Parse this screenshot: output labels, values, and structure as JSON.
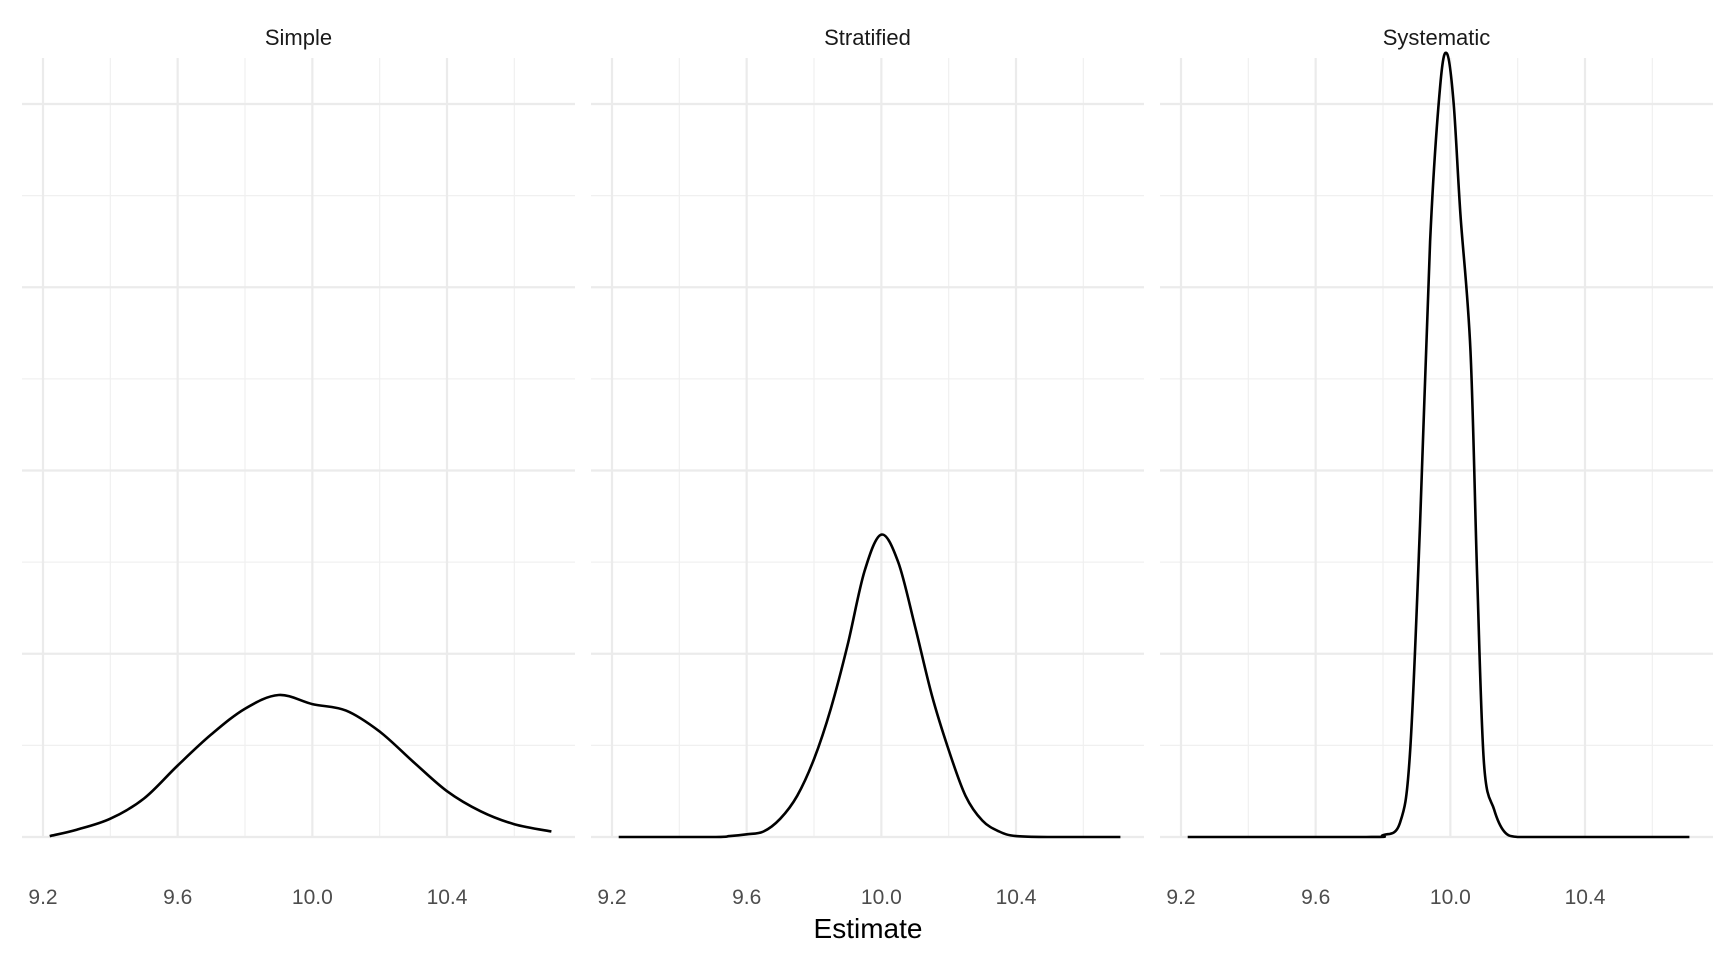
{
  "chart_data": {
    "type": "line",
    "xlabel": "Estimate",
    "ylabel": "",
    "xlim": [
      9.2,
      10.7
    ],
    "ylim": [
      0,
      8.6
    ],
    "x_ticks": [
      9.2,
      9.6,
      10.0,
      10.4
    ],
    "x_tick_labels": [
      "9.2",
      "9.6",
      "10.0",
      "10.4"
    ],
    "y_grid_major": [
      0,
      2,
      4,
      6,
      8
    ],
    "y_grid_minor": [
      1,
      3,
      5,
      7
    ],
    "grid": true,
    "line_color": "#000000",
    "grid_color": "#ebebeb",
    "facets": [
      {
        "title": "Simple",
        "x": [
          9.22,
          9.3,
          9.4,
          9.5,
          9.6,
          9.7,
          9.8,
          9.9,
          10.0,
          10.1,
          10.2,
          10.3,
          10.4,
          10.5,
          10.6,
          10.71
        ],
        "y": [
          0.01,
          0.08,
          0.2,
          0.42,
          0.78,
          1.12,
          1.4,
          1.55,
          1.45,
          1.38,
          1.15,
          0.82,
          0.5,
          0.28,
          0.14,
          0.06
        ]
      },
      {
        "title": "Stratified",
        "x": [
          9.22,
          9.5,
          9.55,
          9.6,
          9.65,
          9.7,
          9.75,
          9.8,
          9.85,
          9.9,
          9.95,
          10.0,
          10.05,
          10.1,
          10.15,
          10.2,
          10.25,
          10.3,
          10.35,
          10.4,
          10.5,
          10.71
        ],
        "y": [
          0.0,
          0.0,
          0.01,
          0.03,
          0.06,
          0.2,
          0.45,
          0.85,
          1.4,
          2.1,
          2.9,
          3.3,
          3.0,
          2.3,
          1.55,
          0.95,
          0.45,
          0.18,
          0.06,
          0.01,
          0.0,
          0.0
        ]
      },
      {
        "title": "Systematic",
        "x": [
          9.22,
          9.75,
          9.8,
          9.85,
          9.88,
          9.91,
          9.94,
          9.97,
          9.99,
          10.01,
          10.03,
          10.06,
          10.08,
          10.1,
          10.13,
          10.16,
          10.2,
          10.3,
          10.71
        ],
        "y": [
          0.0,
          0.0,
          0.02,
          0.15,
          0.9,
          3.4,
          6.5,
          8.2,
          8.55,
          8.0,
          6.8,
          5.3,
          2.8,
          0.8,
          0.3,
          0.06,
          0.0,
          0.0,
          0.0
        ]
      }
    ]
  }
}
